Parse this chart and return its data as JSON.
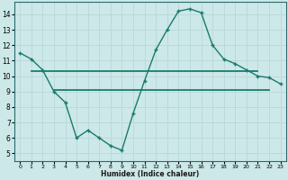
{
  "line1_x": [
    0,
    1,
    2,
    3,
    4,
    5,
    6,
    7,
    8,
    9,
    10,
    11,
    12,
    13,
    14,
    15,
    16,
    17,
    18,
    19,
    20,
    21,
    22,
    23
  ],
  "line1_y": [
    11.5,
    11.1,
    10.4,
    9.0,
    8.3,
    6.0,
    6.5,
    6.0,
    5.5,
    5.2,
    7.6,
    9.7,
    11.7,
    13.0,
    14.2,
    14.35,
    14.1,
    12.0,
    11.1,
    10.8,
    10.4,
    10.0,
    9.9,
    9.5
  ],
  "line2_x": [
    1,
    21
  ],
  "line2_y": [
    10.35,
    10.35
  ],
  "line3_x": [
    3,
    22
  ],
  "line3_y": [
    9.1,
    9.1
  ],
  "line_color": "#1a7a6e",
  "bg_color": "#cce8e8",
  "grid_color": "#b8d8d8",
  "xlabel": "Humidex (Indice chaleur)",
  "ylim": [
    4.5,
    14.8
  ],
  "xlim": [
    -0.5,
    23.5
  ],
  "xticks": [
    0,
    1,
    2,
    3,
    4,
    5,
    6,
    7,
    8,
    9,
    10,
    11,
    12,
    13,
    14,
    15,
    16,
    17,
    18,
    19,
    20,
    21,
    22,
    23
  ],
  "yticks": [
    5,
    6,
    7,
    8,
    9,
    10,
    11,
    12,
    13,
    14
  ]
}
